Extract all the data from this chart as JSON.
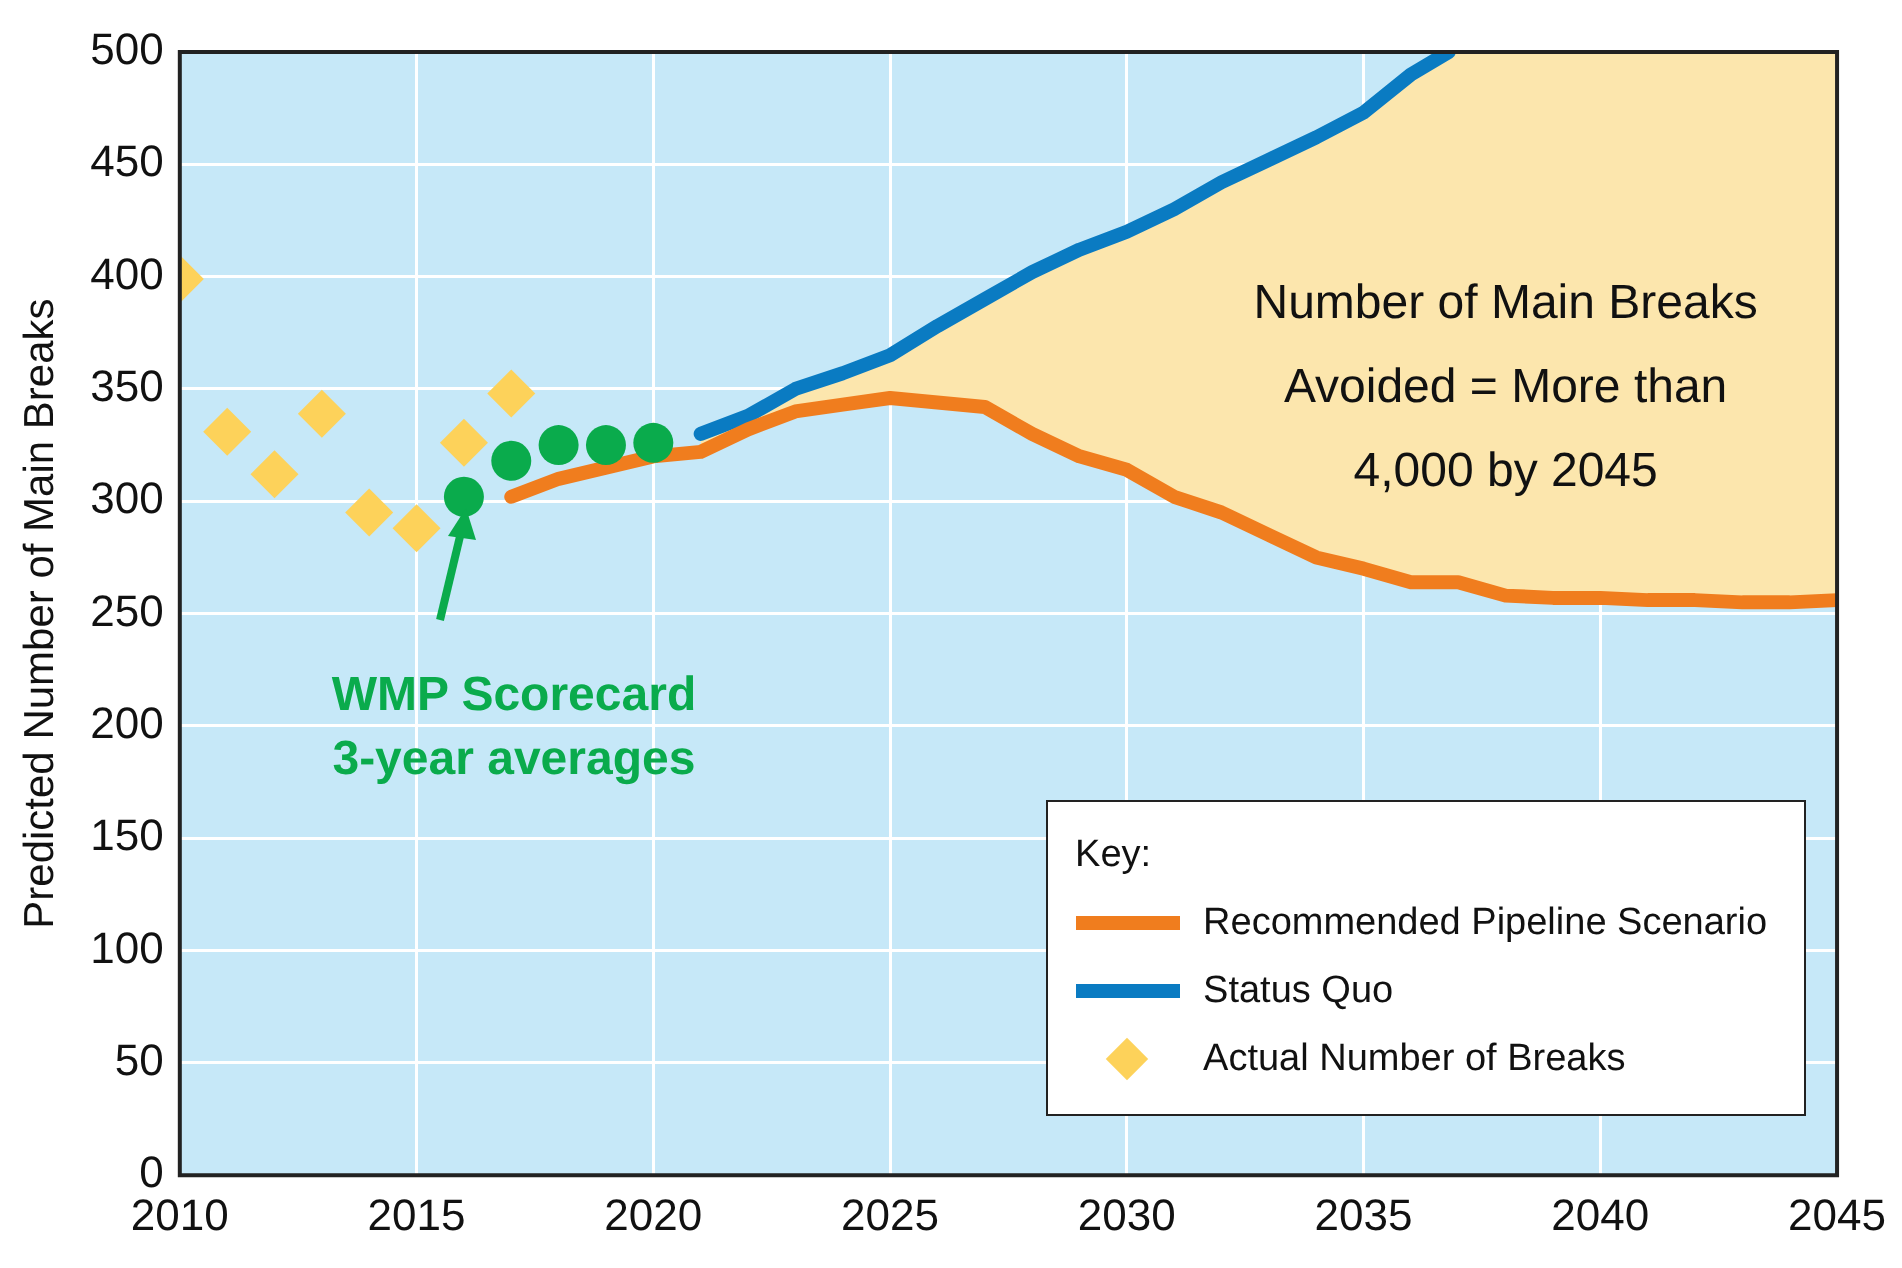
{
  "chart_data": {
    "type": "line",
    "ylabel": "Predicted Number of Main Breaks",
    "xlim": [
      2010,
      2045
    ],
    "xticks": [
      2010,
      2015,
      2020,
      2025,
      2030,
      2035,
      2040,
      2045
    ],
    "ylim": [
      0,
      500
    ],
    "yticks": [
      0,
      50,
      100,
      150,
      200,
      250,
      300,
      350,
      400,
      450,
      500
    ],
    "grid": true,
    "legend": "bottom right",
    "legend_title": "Key:",
    "series": [
      {
        "type": "area",
        "color": "#fce6ad",
        "x": [
          2021,
          2022,
          2023,
          2024,
          2025,
          2026,
          2027,
          2028,
          2029,
          2030,
          2031,
          2032,
          2033,
          2034,
          2035,
          2036,
          2036.8,
          2037,
          2038,
          2039,
          2040,
          2041,
          2042,
          2043,
          2044,
          2045
        ],
        "values": [
          330,
          338,
          350,
          357,
          365,
          378,
          390,
          402,
          412,
          420,
          430,
          442,
          452,
          462,
          473,
          490,
          500,
          500,
          500,
          500,
          500,
          500,
          500,
          500,
          500,
          500
        ]
      },
      {
        "name": "Recommended Pipeline Scenario",
        "color": "#f07d1e",
        "marker": "none",
        "line_style": "solid",
        "x": [
          2017,
          2018,
          2019,
          2020,
          2021,
          2022,
          2023,
          2024,
          2025,
          2026,
          2027,
          2028,
          2029,
          2030,
          2031,
          2032,
          2033,
          2034,
          2035,
          2036,
          2037,
          2038,
          2039,
          2040,
          2041,
          2042,
          2043,
          2044,
          2045
        ],
        "values": [
          302,
          310,
          315,
          320,
          322,
          332,
          340,
          343,
          346,
          344,
          342,
          330,
          320,
          314,
          302,
          295,
          285,
          275,
          270,
          264,
          264,
          258,
          257,
          257,
          256,
          256,
          255,
          255,
          256
        ]
      },
      {
        "name": "Status Quo",
        "color": "#0a7bc2",
        "marker": "none",
        "line_style": "solid",
        "x": [
          2021,
          2022,
          2023,
          2024,
          2025,
          2026,
          2027,
          2028,
          2029,
          2030,
          2031,
          2032,
          2033,
          2034,
          2035,
          2036,
          2036.8
        ],
        "values": [
          330,
          338,
          350,
          357,
          365,
          378,
          390,
          402,
          412,
          420,
          430,
          442,
          452,
          462,
          473,
          490,
          500
        ]
      },
      {
        "name": "Actual Number of Breaks",
        "type": "scatter",
        "color": "#fdd25a",
        "marker": "diamond",
        "x": [
          2010,
          2011,
          2012,
          2013,
          2014,
          2015,
          2016,
          2017
        ],
        "values": [
          399,
          331,
          312,
          339,
          295,
          288,
          326,
          348
        ]
      },
      {
        "type": "scatter",
        "color": "#0aab4c",
        "marker": "circle",
        "x": [
          2016,
          2017,
          2018,
          2019,
          2020
        ],
        "values": [
          302,
          318,
          325,
          325,
          326
        ]
      }
    ],
    "annotations": [
      "Number of Main Breaks\nAvoided = More than\n4,000 by 2045",
      "WMP Scorecard\n3-year averages"
    ]
  }
}
